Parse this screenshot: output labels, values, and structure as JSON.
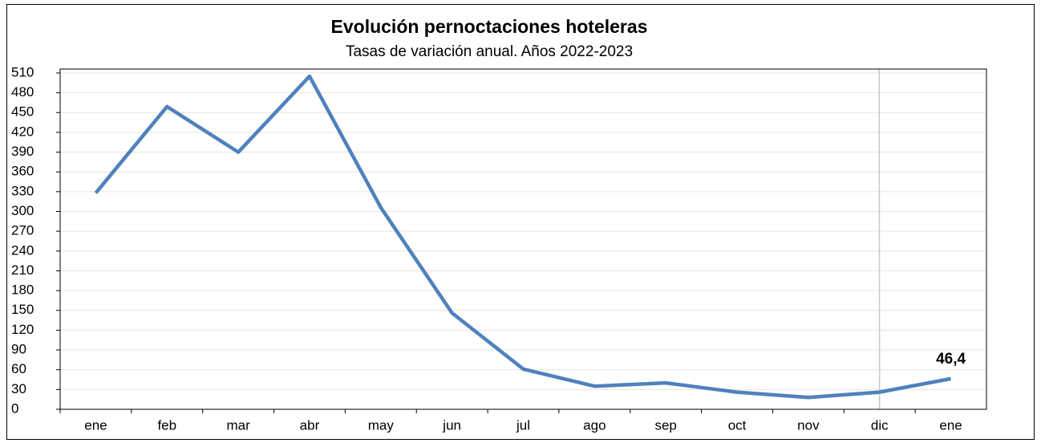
{
  "chart_data": {
    "type": "line",
    "title": "Evolución pernoctaciones hoteleras",
    "subtitle": "Tasas de variación anual. Años 2022-2023",
    "categories": [
      "ene",
      "feb",
      "mar",
      "abr",
      "may",
      "jun",
      "jul",
      "ago",
      "sep",
      "oct",
      "nov",
      "dic",
      "ene"
    ],
    "series": [
      {
        "name": "Pernoctaciones",
        "color": "#4f81bd",
        "values": [
          328,
          459,
          390,
          505,
          306,
          146,
          61,
          35,
          40,
          26,
          18,
          26,
          46.4
        ],
        "value_labels": [
          null,
          null,
          null,
          null,
          null,
          null,
          null,
          null,
          null,
          null,
          null,
          null,
          "46,4"
        ]
      }
    ],
    "ylim": [
      0,
      516
    ],
    "yticks": [
      0,
      30,
      60,
      90,
      120,
      150,
      180,
      210,
      240,
      270,
      300,
      330,
      360,
      390,
      420,
      450,
      480,
      510
    ],
    "grid": true
  }
}
